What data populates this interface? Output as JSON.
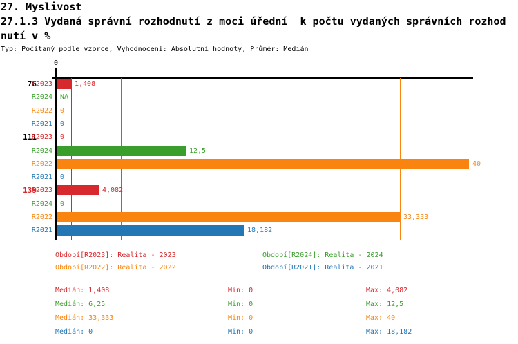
{
  "header": {
    "line1": "27. Myslivost",
    "line2": "27.1.3 Vydaná správní rozhodnutí z moci úřední  k počtu vydaných správních rozhod",
    "line3": "nutí v %",
    "meta": "Typ: Počítaný podle vzorce, Vyhodnocení: Absolutní hodnoty, Průměr: Medián"
  },
  "colors": {
    "R2023": "#d7282d",
    "R2024": "#3a9e2c",
    "R2022": "#fa8410",
    "R2021": "#2277b4",
    "axis": "#000000"
  },
  "chart_data": {
    "type": "bar",
    "orientation": "horizontal",
    "unit": "%",
    "axis_tick_label": "0",
    "axis_range_hint": [
      0,
      40
    ],
    "groups": [
      {
        "label": "76",
        "label_color": "#000000",
        "rows": [
          {
            "series": "R2023",
            "value": 1.408,
            "label": "1,408"
          },
          {
            "series": "R2024",
            "value": null,
            "label": "NA"
          },
          {
            "series": "R2022",
            "value": 0,
            "label": "0"
          },
          {
            "series": "R2021",
            "value": 0,
            "label": "0"
          }
        ]
      },
      {
        "label": "111",
        "label_color": "#000000",
        "rows": [
          {
            "series": "R2023",
            "value": 0,
            "label": "0"
          },
          {
            "series": "R2024",
            "value": 12.5,
            "label": "12,5"
          },
          {
            "series": "R2022",
            "value": 40,
            "label": "40"
          },
          {
            "series": "R2021",
            "value": 0,
            "label": "0"
          }
        ]
      },
      {
        "label": "139",
        "label_color": "#d7282d",
        "rows": [
          {
            "series": "R2023",
            "value": 4.082,
            "label": "4,082"
          },
          {
            "series": "R2024",
            "value": 0,
            "label": "0"
          },
          {
            "series": "R2022",
            "value": 33.333,
            "label": "33,333"
          },
          {
            "series": "R2021",
            "value": 18.182,
            "label": "18,182"
          }
        ]
      }
    ],
    "median_lines": [
      {
        "series": "R2023",
        "value": 1.408
      },
      {
        "series": "R2024",
        "value": 6.25
      },
      {
        "series": "R2022",
        "value": 33.333
      },
      {
        "series": "R2021",
        "value": 0
      }
    ]
  },
  "legend": {
    "items": [
      {
        "series": "R2023",
        "text": "Období[R2023]: Realita - 2023",
        "col": 0,
        "row": 0
      },
      {
        "series": "R2024",
        "text": "Období[R2024]: Realita - 2024",
        "col": 1,
        "row": 0
      },
      {
        "series": "R2022",
        "text": "Období[R2022]: Realita - 2022",
        "col": 0,
        "row": 1
      },
      {
        "series": "R2021",
        "text": "Období[R2021]: Realita - 2021",
        "col": 1,
        "row": 1
      }
    ]
  },
  "stats_panel": {
    "rows": [
      {
        "series": "R2023",
        "median": "Medián: 1,408",
        "min": "Min: 0",
        "max": "Max: 4,082"
      },
      {
        "series": "R2024",
        "median": "Medián: 6,25",
        "min": "Min: 0",
        "max": "Max: 12,5"
      },
      {
        "series": "R2022",
        "median": "Medián: 33,333",
        "min": "Min: 0",
        "max": "Max: 40"
      },
      {
        "series": "R2021",
        "median": "Medián: 0",
        "min": "Min: 0",
        "max": "Max: 18,182"
      }
    ]
  }
}
